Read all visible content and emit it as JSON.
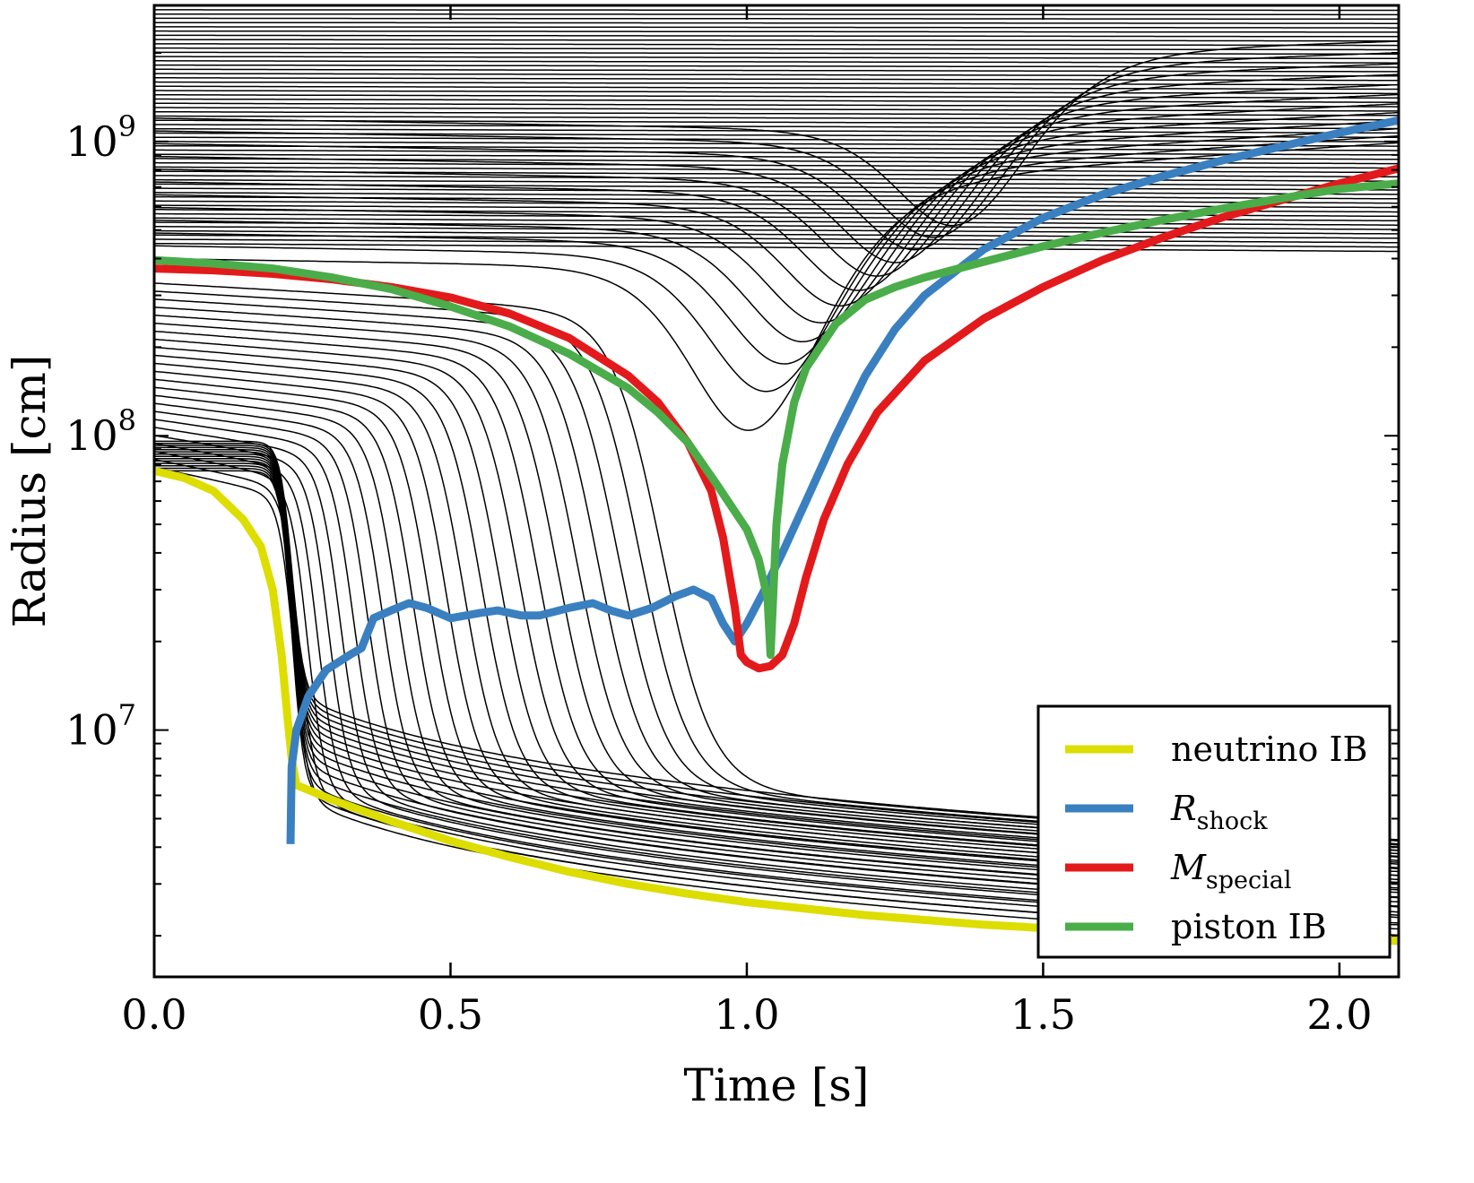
{
  "chart_data": {
    "type": "line",
    "title": "",
    "xlabel": "Time [s]",
    "ylabel": "Radius [cm]",
    "xlim": [
      0.0,
      2.1
    ],
    "ylim": [
      1450000.0,
      2900000000.0
    ],
    "yscale": "log",
    "x_ticks": [
      {
        "value": 0.0,
        "label": "0.0"
      },
      {
        "value": 0.5,
        "label": "0.5"
      },
      {
        "value": 1.0,
        "label": "1.0"
      },
      {
        "value": 1.5,
        "label": "1.5"
      },
      {
        "value": 2.0,
        "label": "2.0"
      }
    ],
    "y_ticks": [
      {
        "value": 10000000.0,
        "base": "10",
        "exp": "7"
      },
      {
        "value": 100000000.0,
        "base": "10",
        "exp": "8"
      },
      {
        "value": 1000000000.0,
        "base": "10",
        "exp": "9"
      }
    ],
    "legend": {
      "location": "lower-right",
      "entries": [
        {
          "key": "neutrino",
          "label": "neutrino IB",
          "sub": "",
          "color": "#dddd00"
        },
        {
          "key": "shock",
          "label": "R",
          "sub": "shock",
          "color": "#3a80c0"
        },
        {
          "key": "special",
          "label": "M",
          "sub": "special",
          "color": "#e31a1c"
        },
        {
          "key": "piston",
          "label": "piston IB",
          "sub": "",
          "color": "#4aad4a"
        }
      ]
    },
    "series": [
      {
        "name": "neutrino IB",
        "color": "#dddd00",
        "points": [
          [
            0,
            76000000.0
          ],
          [
            0.05,
            72000000.0
          ],
          [
            0.1,
            65000000.0
          ],
          [
            0.15,
            52000000.0
          ],
          [
            0.18,
            42000000.0
          ],
          [
            0.2,
            30000000.0
          ],
          [
            0.215,
            18000000.0
          ],
          [
            0.225,
            11000000.0
          ],
          [
            0.232,
            8000000.0
          ],
          [
            0.24,
            6500000.0
          ],
          [
            0.3,
            5800000.0
          ],
          [
            0.4,
            4900000.0
          ],
          [
            0.5,
            4200000.0
          ],
          [
            0.6,
            3700000.0
          ],
          [
            0.7,
            3300000.0
          ],
          [
            0.8,
            3000000.0
          ],
          [
            0.9,
            2780000.0
          ],
          [
            1.0,
            2600000.0
          ],
          [
            1.2,
            2350000.0
          ],
          [
            1.4,
            2180000.0
          ],
          [
            1.6,
            2070000.0
          ],
          [
            1.8,
            2000000.0
          ],
          [
            2.0,
            1950000.0
          ],
          [
            2.1,
            1920000.0
          ]
        ]
      },
      {
        "name": "R_shock",
        "color": "#3a80c0",
        "points": [
          [
            0.23,
            4100000.0
          ],
          [
            0.232,
            7500000.0
          ],
          [
            0.24,
            10000000.0
          ],
          [
            0.26,
            13000000.0
          ],
          [
            0.29,
            16000000.0
          ],
          [
            0.33,
            18000000.0
          ],
          [
            0.35,
            19000000.0
          ],
          [
            0.37,
            24000000.0
          ],
          [
            0.4,
            25500000.0
          ],
          [
            0.43,
            27000000.0
          ],
          [
            0.46,
            26000000.0
          ],
          [
            0.5,
            24000000.0
          ],
          [
            0.55,
            25000000.0
          ],
          [
            0.58,
            25500000.0
          ],
          [
            0.62,
            24500000.0
          ],
          [
            0.65,
            24500000.0
          ],
          [
            0.7,
            26000000.0
          ],
          [
            0.74,
            27000000.0
          ],
          [
            0.77,
            25500000.0
          ],
          [
            0.8,
            24500000.0
          ],
          [
            0.84,
            26000000.0
          ],
          [
            0.88,
            28500000.0
          ],
          [
            0.91,
            30000000.0
          ],
          [
            0.94,
            28000000.0
          ],
          [
            0.96,
            23000000.0
          ],
          [
            0.98,
            20000000.0
          ],
          [
            1.0,
            23000000.0
          ],
          [
            1.03,
            30000000.0
          ],
          [
            1.06,
            40000000.0
          ],
          [
            1.1,
            60000000.0
          ],
          [
            1.15,
            100000000.0
          ],
          [
            1.2,
            160000000.0
          ],
          [
            1.25,
            230000000.0
          ],
          [
            1.3,
            300000000.0
          ],
          [
            1.4,
            430000000.0
          ],
          [
            1.5,
            550000000.0
          ],
          [
            1.6,
            660000000.0
          ],
          [
            1.7,
            760000000.0
          ],
          [
            1.8,
            860000000.0
          ],
          [
            1.9,
            960000000.0
          ],
          [
            2.0,
            1070000000.0
          ],
          [
            2.1,
            1180000000.0
          ]
        ]
      },
      {
        "name": "M_special",
        "color": "#e31a1c",
        "points": [
          [
            0,
            370000000.0
          ],
          [
            0.1,
            365000000.0
          ],
          [
            0.2,
            355000000.0
          ],
          [
            0.3,
            340000000.0
          ],
          [
            0.4,
            320000000.0
          ],
          [
            0.5,
            295000000.0
          ],
          [
            0.6,
            260000000.0
          ],
          [
            0.7,
            215000000.0
          ],
          [
            0.8,
            160000000.0
          ],
          [
            0.85,
            130000000.0
          ],
          [
            0.9,
            95000000.0
          ],
          [
            0.94,
            65000000.0
          ],
          [
            0.96,
            45000000.0
          ],
          [
            0.98,
            26000000.0
          ],
          [
            0.99,
            18000000.0
          ],
          [
            1.0,
            17000000.0
          ],
          [
            1.02,
            16200000.0
          ],
          [
            1.04,
            16500000.0
          ],
          [
            1.06,
            18000000.0
          ],
          [
            1.08,
            23000000.0
          ],
          [
            1.1,
            33000000.0
          ],
          [
            1.13,
            52000000.0
          ],
          [
            1.17,
            80000000.0
          ],
          [
            1.22,
            120000000.0
          ],
          [
            1.3,
            180000000.0
          ],
          [
            1.4,
            250000000.0
          ],
          [
            1.5,
            320000000.0
          ],
          [
            1.6,
            395000000.0
          ],
          [
            1.7,
            470000000.0
          ],
          [
            1.8,
            550000000.0
          ],
          [
            1.9,
            630000000.0
          ],
          [
            2.0,
            720000000.0
          ],
          [
            2.1,
            810000000.0
          ]
        ]
      },
      {
        "name": "piston IB",
        "color": "#4aad4a",
        "points": [
          [
            0,
            395000000.0
          ],
          [
            0.1,
            385000000.0
          ],
          [
            0.2,
            370000000.0
          ],
          [
            0.3,
            345000000.0
          ],
          [
            0.4,
            315000000.0
          ],
          [
            0.5,
            275000000.0
          ],
          [
            0.6,
            235000000.0
          ],
          [
            0.7,
            190000000.0
          ],
          [
            0.8,
            145000000.0
          ],
          [
            0.85,
            120000000.0
          ],
          [
            0.9,
            95000000.0
          ],
          [
            0.95,
            68000000.0
          ],
          [
            1.0,
            48000000.0
          ],
          [
            1.02,
            38000000.0
          ],
          [
            1.035,
            28000000.0
          ],
          [
            1.04,
            18000000.0
          ],
          [
            1.045,
            30000000.0
          ],
          [
            1.05,
            50000000.0
          ],
          [
            1.06,
            80000000.0
          ],
          [
            1.08,
            130000000.0
          ],
          [
            1.1,
            170000000.0
          ],
          [
            1.15,
            240000000.0
          ],
          [
            1.2,
            290000000.0
          ],
          [
            1.25,
            320000000.0
          ],
          [
            1.3,
            345000000.0
          ],
          [
            1.4,
            390000000.0
          ],
          [
            1.5,
            440000000.0
          ],
          [
            1.6,
            490000000.0
          ],
          [
            1.7,
            540000000.0
          ],
          [
            1.8,
            590000000.0
          ],
          [
            1.9,
            640000000.0
          ],
          [
            2.0,
            690000000.0
          ],
          [
            2.1,
            720000000.0
          ]
        ]
      }
    ]
  }
}
